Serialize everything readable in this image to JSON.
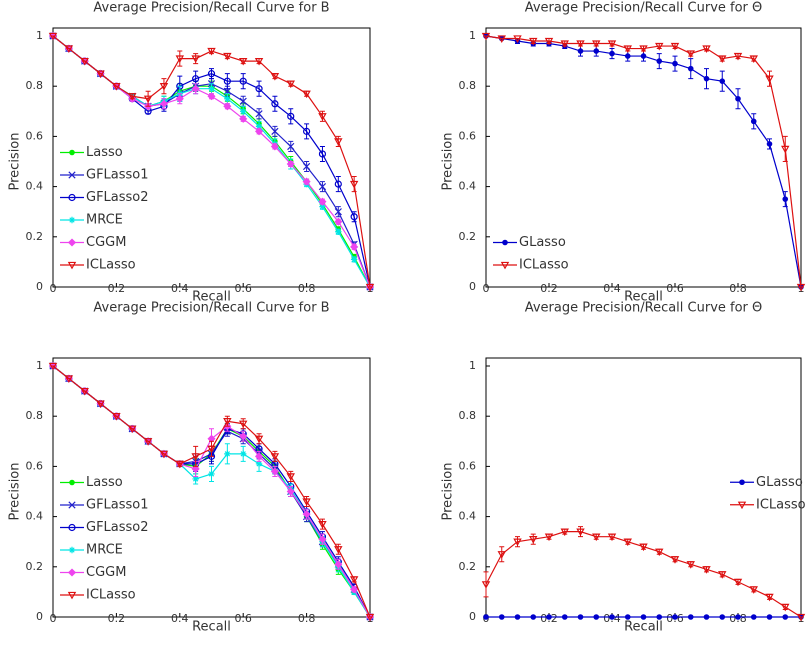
{
  "chart_data": [
    {
      "type": "line",
      "title": "Average Precision/Recall Curve for B",
      "x_label": "Recall",
      "y_label": "Precision",
      "x": [
        0,
        0.05,
        0.1,
        0.15,
        0.2,
        0.25,
        0.3,
        0.35,
        0.4,
        0.45,
        0.5,
        0.55,
        0.6,
        0.65,
        0.7,
        0.75,
        0.8,
        0.85,
        0.9,
        0.95,
        1
      ],
      "xlim": [
        0,
        1
      ],
      "xticks": [
        0,
        0.2,
        0.4,
        0.6,
        0.8,
        1
      ],
      "ylim": [
        0,
        1
      ],
      "yticks": [
        0,
        0.2,
        0.4,
        0.6,
        0.8,
        1
      ],
      "legend": "lower left",
      "series": [
        {
          "name": "Lasso",
          "color": "#00ee00",
          "marker": "dot",
          "values": [
            1,
            0.95,
            0.9,
            0.85,
            0.8,
            0.76,
            0.72,
            0.74,
            0.78,
            0.8,
            0.8,
            0.76,
            0.71,
            0.65,
            0.58,
            0.5,
            0.42,
            0.33,
            0.23,
            0.12,
            0
          ],
          "errors": [
            0,
            0,
            0,
            0,
            0,
            0.01,
            0.01,
            0.02,
            0.03,
            0.02,
            0.02,
            0.02,
            0.02,
            0.02,
            0.02,
            0.02,
            0.01,
            0.01,
            0.01,
            0.01,
            0
          ]
        },
        {
          "name": "GFLasso1",
          "color": "#2222cc",
          "marker": "x",
          "values": [
            1,
            0.95,
            0.9,
            0.85,
            0.8,
            0.76,
            0.72,
            0.73,
            0.77,
            0.8,
            0.81,
            0.78,
            0.74,
            0.69,
            0.62,
            0.56,
            0.48,
            0.4,
            0.3,
            0.17,
            0
          ],
          "errors": [
            0,
            0,
            0,
            0,
            0,
            0.01,
            0.01,
            0.02,
            0.03,
            0.02,
            0.02,
            0.02,
            0.02,
            0.02,
            0.02,
            0.02,
            0.02,
            0.02,
            0.02,
            0.01,
            0
          ]
        },
        {
          "name": "GFLasso2",
          "color": "#0000cc",
          "marker": "circle",
          "values": [
            1,
            0.95,
            0.9,
            0.85,
            0.8,
            0.75,
            0.7,
            0.72,
            0.8,
            0.83,
            0.85,
            0.82,
            0.82,
            0.79,
            0.73,
            0.68,
            0.62,
            0.53,
            0.41,
            0.28,
            0
          ],
          "errors": [
            0,
            0,
            0,
            0,
            0,
            0.01,
            0.01,
            0.02,
            0.04,
            0.03,
            0.02,
            0.03,
            0.03,
            0.03,
            0.03,
            0.03,
            0.03,
            0.03,
            0.03,
            0.02,
            0
          ]
        },
        {
          "name": "MRCE",
          "color": "#00e5e5",
          "marker": "star",
          "values": [
            1,
            0.95,
            0.9,
            0.85,
            0.8,
            0.76,
            0.72,
            0.74,
            0.77,
            0.79,
            0.79,
            0.75,
            0.7,
            0.64,
            0.57,
            0.49,
            0.41,
            0.32,
            0.22,
            0.11,
            0
          ],
          "errors": [
            0,
            0,
            0,
            0,
            0,
            0.01,
            0.01,
            0.02,
            0.03,
            0.02,
            0.02,
            0.02,
            0.02,
            0.02,
            0.02,
            0.02,
            0.01,
            0.01,
            0.01,
            0.01,
            0
          ]
        },
        {
          "name": "CGGM",
          "color": "#ee44ee",
          "marker": "diamond",
          "values": [
            1,
            0.95,
            0.9,
            0.85,
            0.8,
            0.75,
            0.72,
            0.73,
            0.75,
            0.79,
            0.76,
            0.72,
            0.67,
            0.62,
            0.56,
            0.49,
            0.42,
            0.34,
            0.26,
            0.16,
            0
          ],
          "errors": [
            0,
            0,
            0,
            0,
            0,
            0.01,
            0.01,
            0.02,
            0.02,
            0.02,
            0.01,
            0.01,
            0.01,
            0.01,
            0.01,
            0.01,
            0.01,
            0.01,
            0.01,
            0.01,
            0
          ]
        },
        {
          "name": "ICLasso",
          "color": "#dd1111",
          "marker": "tri-down",
          "values": [
            1,
            0.95,
            0.9,
            0.85,
            0.8,
            0.76,
            0.75,
            0.8,
            0.91,
            0.91,
            0.94,
            0.92,
            0.9,
            0.9,
            0.84,
            0.81,
            0.77,
            0.68,
            0.58,
            0.41,
            0
          ],
          "errors": [
            0,
            0,
            0,
            0,
            0,
            0.01,
            0.03,
            0.03,
            0.03,
            0.02,
            0.01,
            0.01,
            0.01,
            0.01,
            0.01,
            0.01,
            0.01,
            0.02,
            0.02,
            0.03,
            0
          ]
        }
      ]
    },
    {
      "type": "line",
      "title": "Average Precision/Recall Curve for Θ",
      "x_label": "Recall",
      "y_label": "Precision",
      "x": [
        0,
        0.05,
        0.1,
        0.15,
        0.2,
        0.25,
        0.3,
        0.35,
        0.4,
        0.45,
        0.5,
        0.55,
        0.6,
        0.65,
        0.7,
        0.75,
        0.8,
        0.85,
        0.9,
        0.95,
        1
      ],
      "xlim": [
        0,
        1
      ],
      "xticks": [
        0,
        0.2,
        0.4,
        0.6,
        0.8,
        1
      ],
      "ylim": [
        0,
        1
      ],
      "yticks": [
        0,
        0.2,
        0.4,
        0.6,
        0.8,
        1
      ],
      "legend": "lower left",
      "series": [
        {
          "name": "GLasso",
          "color": "#0000cc",
          "marker": "dot",
          "values": [
            1,
            0.99,
            0.98,
            0.97,
            0.97,
            0.96,
            0.94,
            0.94,
            0.93,
            0.92,
            0.92,
            0.9,
            0.89,
            0.87,
            0.83,
            0.82,
            0.75,
            0.66,
            0.57,
            0.35,
            0
          ],
          "errors": [
            0,
            0,
            0.01,
            0.01,
            0.01,
            0.01,
            0.02,
            0.02,
            0.02,
            0.02,
            0.02,
            0.03,
            0.03,
            0.04,
            0.04,
            0.04,
            0.04,
            0.03,
            0.02,
            0.03,
            0
          ]
        },
        {
          "name": "ICLasso",
          "color": "#dd1111",
          "marker": "tri-down",
          "values": [
            1,
            0.99,
            0.99,
            0.98,
            0.98,
            0.97,
            0.97,
            0.97,
            0.97,
            0.95,
            0.95,
            0.96,
            0.96,
            0.93,
            0.95,
            0.91,
            0.92,
            0.91,
            0.83,
            0.55,
            0
          ],
          "errors": [
            0,
            0,
            0,
            0.01,
            0.01,
            0.01,
            0.01,
            0.01,
            0.01,
            0.01,
            0.01,
            0.01,
            0.01,
            0.01,
            0.01,
            0.01,
            0.01,
            0.01,
            0.03,
            0.05,
            0
          ]
        }
      ]
    },
    {
      "type": "line",
      "title": "Average Precision/Recall Curve for B",
      "x_label": "Recall",
      "y_label": "Precision",
      "x": [
        0,
        0.05,
        0.1,
        0.15,
        0.2,
        0.25,
        0.3,
        0.35,
        0.4,
        0.45,
        0.5,
        0.55,
        0.6,
        0.65,
        0.7,
        0.75,
        0.8,
        0.85,
        0.9,
        0.95,
        1
      ],
      "xlim": [
        0,
        1
      ],
      "xticks": [
        0,
        0.2,
        0.4,
        0.6,
        0.8,
        1
      ],
      "ylim": [
        0,
        1
      ],
      "yticks": [
        0,
        0.2,
        0.4,
        0.6,
        0.8,
        1
      ],
      "legend": "lower left",
      "series": [
        {
          "name": "Lasso",
          "color": "#00ee00",
          "marker": "dot",
          "values": [
            1,
            0.95,
            0.9,
            0.85,
            0.8,
            0.75,
            0.7,
            0.65,
            0.61,
            0.6,
            0.65,
            0.75,
            0.72,
            0.66,
            0.6,
            0.5,
            0.4,
            0.29,
            0.19,
            0.1,
            0
          ],
          "errors": [
            0,
            0,
            0,
            0,
            0,
            0,
            0,
            0,
            0.01,
            0.03,
            0.03,
            0.02,
            0.02,
            0.02,
            0.02,
            0.02,
            0.02,
            0.02,
            0.02,
            0.01,
            0
          ]
        },
        {
          "name": "GFLasso1",
          "color": "#2222cc",
          "marker": "x",
          "values": [
            1,
            0.95,
            0.9,
            0.85,
            0.8,
            0.75,
            0.7,
            0.65,
            0.61,
            0.62,
            0.65,
            0.74,
            0.71,
            0.65,
            0.59,
            0.5,
            0.4,
            0.3,
            0.21,
            0.11,
            0
          ],
          "errors": [
            0,
            0,
            0,
            0,
            0,
            0,
            0,
            0,
            0.01,
            0.03,
            0.03,
            0.02,
            0.02,
            0.02,
            0.02,
            0.02,
            0.02,
            0.02,
            0.02,
            0.01,
            0
          ]
        },
        {
          "name": "GFLasso2",
          "color": "#0000cc",
          "marker": "circle",
          "values": [
            1,
            0.95,
            0.9,
            0.85,
            0.8,
            0.75,
            0.7,
            0.65,
            0.61,
            0.61,
            0.64,
            0.75,
            0.73,
            0.67,
            0.61,
            0.52,
            0.42,
            0.32,
            0.22,
            0.12,
            0
          ],
          "errors": [
            0,
            0,
            0,
            0,
            0,
            0,
            0,
            0,
            0.01,
            0.03,
            0.03,
            0.02,
            0.02,
            0.02,
            0.02,
            0.02,
            0.02,
            0.02,
            0.02,
            0.01,
            0
          ]
        },
        {
          "name": "MRCE",
          "color": "#00e5e5",
          "marker": "star",
          "values": [
            1,
            0.95,
            0.9,
            0.85,
            0.8,
            0.75,
            0.7,
            0.65,
            0.61,
            0.55,
            0.57,
            0.65,
            0.65,
            0.61,
            0.58,
            0.51,
            0.41,
            0.3,
            0.2,
            0.1,
            0
          ],
          "errors": [
            0,
            0,
            0,
            0,
            0,
            0,
            0,
            0,
            0.01,
            0.02,
            0.03,
            0.04,
            0.03,
            0.03,
            0.02,
            0.02,
            0.02,
            0.02,
            0.02,
            0.01,
            0
          ]
        },
        {
          "name": "CGGM",
          "color": "#ee44ee",
          "marker": "diamond",
          "values": [
            1,
            0.95,
            0.9,
            0.85,
            0.8,
            0.75,
            0.7,
            0.65,
            0.61,
            0.59,
            0.71,
            0.76,
            0.72,
            0.64,
            0.58,
            0.5,
            0.41,
            0.31,
            0.21,
            0.11,
            0
          ],
          "errors": [
            0,
            0,
            0,
            0,
            0,
            0,
            0,
            0,
            0.01,
            0.03,
            0.04,
            0.02,
            0.02,
            0.02,
            0.02,
            0.02,
            0.02,
            0.02,
            0.02,
            0.01,
            0
          ]
        },
        {
          "name": "ICLasso",
          "color": "#dd1111",
          "marker": "tri-down",
          "values": [
            1,
            0.95,
            0.9,
            0.85,
            0.8,
            0.75,
            0.7,
            0.65,
            0.61,
            0.64,
            0.67,
            0.78,
            0.77,
            0.71,
            0.64,
            0.56,
            0.46,
            0.37,
            0.27,
            0.15,
            0
          ],
          "errors": [
            0,
            0,
            0,
            0,
            0,
            0,
            0,
            0,
            0.01,
            0.04,
            0.03,
            0.02,
            0.02,
            0.02,
            0.02,
            0.02,
            0.02,
            0.02,
            0.02,
            0.01,
            0
          ]
        }
      ]
    },
    {
      "type": "line",
      "title": "Average Precision/Recall Curve for Θ",
      "x_label": "Recall",
      "y_label": "Precision",
      "x": [
        0,
        0.05,
        0.1,
        0.15,
        0.2,
        0.25,
        0.3,
        0.35,
        0.4,
        0.45,
        0.5,
        0.55,
        0.6,
        0.65,
        0.7,
        0.75,
        0.8,
        0.85,
        0.9,
        0.95,
        1
      ],
      "xlim": [
        0,
        1
      ],
      "xticks": [
        0,
        0.2,
        0.4,
        0.6,
        0.8,
        1
      ],
      "ylim": [
        0,
        1
      ],
      "yticks": [
        0,
        0.2,
        0.4,
        0.6,
        0.8,
        1
      ],
      "legend": "center right",
      "series": [
        {
          "name": "GLasso",
          "color": "#0000cc",
          "marker": "dot",
          "values": [
            0,
            0,
            0,
            0,
            0,
            0,
            0,
            0,
            0,
            0,
            0,
            0,
            0,
            0,
            0,
            0,
            0,
            0,
            0,
            0,
            0
          ],
          "errors": [
            0,
            0,
            0,
            0,
            0,
            0,
            0,
            0,
            0,
            0,
            0,
            0,
            0,
            0,
            0,
            0,
            0,
            0,
            0,
            0,
            0
          ]
        },
        {
          "name": "ICLasso",
          "color": "#dd1111",
          "marker": "tri-down",
          "values": [
            0.13,
            0.25,
            0.3,
            0.31,
            0.32,
            0.34,
            0.34,
            0.32,
            0.32,
            0.3,
            0.28,
            0.26,
            0.23,
            0.21,
            0.19,
            0.17,
            0.14,
            0.11,
            0.08,
            0.04,
            0
          ],
          "errors": [
            0.05,
            0.03,
            0.02,
            0.02,
            0.01,
            0.01,
            0.02,
            0.01,
            0.01,
            0.01,
            0.01,
            0.01,
            0.01,
            0.01,
            0.01,
            0.01,
            0.01,
            0.01,
            0.01,
            0.01,
            0
          ]
        }
      ]
    }
  ]
}
